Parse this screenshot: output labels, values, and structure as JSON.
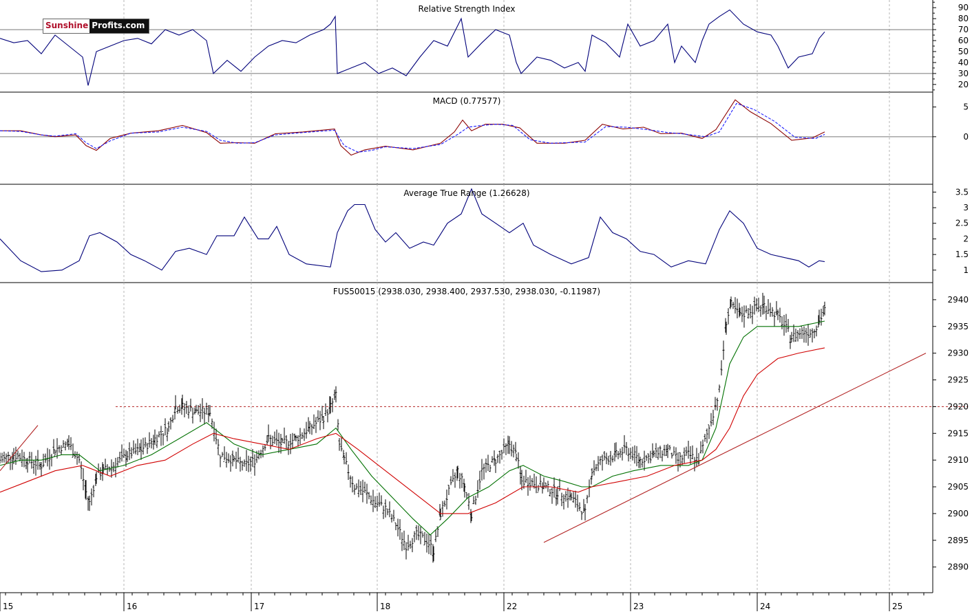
{
  "chart_data": [
    {
      "type": "line",
      "title": "Relative Strength Index",
      "yticks": [
        20,
        30,
        40,
        50,
        60,
        70,
        80,
        90
      ],
      "ylim": [
        13,
        97
      ],
      "reference_lines": [
        30,
        70
      ],
      "series": [
        {
          "color": "#00007a",
          "x": [
            0,
            20,
            40,
            60,
            80,
            100,
            120,
            128,
            140,
            160,
            180,
            200,
            220,
            240,
            260,
            280,
            300,
            310,
            330,
            350,
            370,
            390,
            410,
            430,
            450,
            470,
            480,
            487,
            490,
            510,
            530,
            550,
            570,
            590,
            610,
            630,
            650,
            670,
            680,
            700,
            720,
            740,
            750,
            757,
            780,
            800,
            820,
            840,
            850,
            860,
            880,
            900,
            912,
            930,
            950,
            970,
            980,
            990,
            1010,
            1020,
            1030,
            1045,
            1060,
            1080,
            1100,
            1120,
            1130,
            1145,
            1160,
            1180,
            1190,
            1198
          ],
          "values": [
            62,
            58,
            60,
            48,
            65,
            55,
            45,
            19,
            50,
            55,
            60,
            62,
            57,
            70,
            65,
            70,
            60,
            30,
            42,
            32,
            45,
            55,
            60,
            58,
            65,
            70,
            75,
            82,
            30,
            35,
            40,
            30,
            35,
            28,
            45,
            60,
            55,
            80,
            45,
            58,
            70,
            65,
            40,
            30,
            45,
            42,
            35,
            40,
            32,
            65,
            58,
            45,
            75,
            55,
            60,
            75,
            40,
            55,
            40,
            60,
            75,
            82,
            88,
            75,
            68,
            65,
            55,
            35,
            45,
            48,
            62,
            68
          ]
        }
      ]
    },
    {
      "type": "line",
      "title": "MACD (0.77577)",
      "yticks": [
        5,
        0
      ],
      "ylim": [
        -8,
        7.5
      ],
      "reference_lines": [
        0
      ],
      "series": [
        {
          "color": "#8b0000",
          "x": [
            0,
            30,
            60,
            80,
            110,
            125,
            140,
            160,
            190,
            230,
            265,
            300,
            320,
            345,
            370,
            400,
            440,
            486,
            495,
            510,
            530,
            560,
            600,
            640,
            660,
            672,
            685,
            705,
            730,
            755,
            780,
            820,
            850,
            875,
            905,
            935,
            960,
            990,
            1020,
            1040,
            1068,
            1090,
            1120,
            1150,
            1180,
            1198
          ],
          "values": [
            1,
            1,
            0.3,
            0,
            0.3,
            -1.5,
            -2.3,
            -0.3,
            0.6,
            1,
            1.9,
            0.7,
            -1.1,
            -1,
            -1.1,
            0.5,
            0.8,
            1.3,
            -1.5,
            -3.1,
            -2.2,
            -1.6,
            -2.2,
            -1.1,
            0.8,
            2.8,
            1,
            2.1,
            2.1,
            1.5,
            -1.1,
            -1.1,
            -0.6,
            2.1,
            1.3,
            1.6,
            0.5,
            0.6,
            -0.3,
            1.2,
            6.2,
            4.2,
            2.2,
            -0.6,
            -0.2,
            0.8
          ]
        },
        {
          "color": "#1a1aff",
          "x": [
            0,
            30,
            60,
            80,
            110,
            125,
            140,
            160,
            190,
            230,
            265,
            300,
            320,
            345,
            370,
            400,
            440,
            486,
            500,
            520,
            540,
            560,
            600,
            640,
            665,
            680,
            700,
            720,
            745,
            770,
            800,
            850,
            880,
            910,
            940,
            970,
            990,
            1025,
            1045,
            1070,
            1095,
            1125,
            1155,
            1185,
            1198
          ],
          "values": [
            1,
            0.9,
            0.3,
            0.1,
            0.5,
            -1,
            -2,
            -0.7,
            0.6,
            0.8,
            1.6,
            0.9,
            -0.6,
            -1.1,
            -1,
            0.3,
            0.7,
            1.1,
            -1.5,
            -2.6,
            -2.3,
            -1.7,
            -2,
            -1.3,
            0.4,
            1.6,
            1.9,
            2.1,
            1.9,
            -0.5,
            -1.1,
            -0.9,
            1.7,
            1.6,
            1.2,
            0.7,
            0.5,
            0,
            0.8,
            5.6,
            4.6,
            2.6,
            -0.1,
            -0.3,
            0.4
          ]
        }
      ]
    },
    {
      "type": "line",
      "title": "Average True Range (1.26628)",
      "yticks": [
        3.5,
        3.0,
        2.5,
        2.0,
        1.5,
        1.0
      ],
      "ylim": [
        0.6,
        3.75
      ],
      "series": [
        {
          "color": "#00007a",
          "x": [
            0,
            30,
            60,
            90,
            115,
            130,
            145,
            170,
            190,
            210,
            235,
            255,
            275,
            300,
            315,
            340,
            355,
            375,
            390,
            402,
            420,
            445,
            480,
            490,
            505,
            515,
            530,
            545,
            560,
            575,
            595,
            615,
            630,
            650,
            670,
            685,
            700,
            720,
            740,
            760,
            775,
            800,
            830,
            855,
            872,
            890,
            910,
            930,
            950,
            975,
            1000,
            1025,
            1045,
            1060,
            1080,
            1100,
            1120,
            1140,
            1160,
            1175,
            1190,
            1198
          ],
          "values": [
            2,
            1.3,
            0.95,
            1,
            1.3,
            2.1,
            2.2,
            1.9,
            1.5,
            1.3,
            1,
            1.6,
            1.7,
            1.5,
            2.1,
            2.1,
            2.7,
            2,
            2,
            2.4,
            1.5,
            1.2,
            1.1,
            2.2,
            2.9,
            3.1,
            3.1,
            2.3,
            1.9,
            2.2,
            1.7,
            1.9,
            1.8,
            2.5,
            2.8,
            3.6,
            2.8,
            2.5,
            2.2,
            2.5,
            1.8,
            1.5,
            1.2,
            1.4,
            2.7,
            2.2,
            2,
            1.6,
            1.5,
            1.1,
            1.3,
            1.2,
            2.3,
            2.9,
            2.5,
            1.7,
            1.5,
            1.4,
            1.3,
            1.1,
            1.3,
            1.27
          ]
        }
      ]
    },
    {
      "type": "candlestick",
      "title": "FUS50015 (2938.030, 2938.400, 2937.530, 2938.030, -0.11987)",
      "symbol": "FUS50015",
      "last": {
        "open": 2938.03,
        "high": 2938.4,
        "low": 2937.53,
        "close": 2938.03,
        "change": -0.11987
      },
      "yticks": [
        2940,
        2935,
        2930,
        2925,
        2920,
        2915,
        2910,
        2905,
        2900,
        2895,
        2890
      ],
      "ylim": [
        2885.2,
        2943.2
      ],
      "horizontal_level": 2920,
      "series": [
        {
          "name": "price",
          "color": "#000000",
          "x": [
            0,
            20,
            40,
            60,
            80,
            100,
            115,
            125,
            130,
            140,
            150,
            165,
            185,
            205,
            225,
            245,
            255,
            265,
            285,
            305,
            320,
            340,
            355,
            370,
            390,
            410,
            430,
            450,
            470,
            480,
            488,
            493,
            500,
            515,
            530,
            545,
            560,
            575,
            590,
            605,
            620,
            630,
            640,
            655,
            665,
            675,
            685,
            700,
            720,
            740,
            750,
            758,
            770,
            790,
            810,
            830,
            850,
            860,
            875,
            895,
            910,
            930,
            950,
            970,
            985,
            1000,
            1015,
            1030,
            1045,
            1055,
            1062,
            1075,
            1090,
            1110,
            1130,
            1150,
            1165,
            1180,
            1190,
            1198
          ],
          "values": [
            2910,
            2911,
            2910,
            2909,
            2912,
            2913,
            2910,
            2904,
            2902,
            2907,
            2908,
            2909,
            2911,
            2912,
            2914,
            2916,
            2920,
            2920,
            2919,
            2919,
            2911,
            2910,
            2909,
            2910,
            2914,
            2913,
            2914,
            2916,
            2918,
            2920,
            2922,
            2913,
            2910,
            2905,
            2904,
            2902,
            2901,
            2898,
            2894,
            2896,
            2895,
            2893,
            2900,
            2905,
            2908,
            2905,
            2900,
            2908,
            2910,
            2913,
            2911,
            2906,
            2906,
            2905,
            2904,
            2903,
            2900,
            2908,
            2910,
            2911,
            2912,
            2910,
            2911,
            2912,
            2910,
            2911,
            2910,
            2916,
            2923,
            2936,
            2939,
            2937,
            2938,
            2939,
            2937,
            2933,
            2934,
            2934,
            2936,
            2938
          ]
        },
        {
          "name": "",
          "color": "#007000",
          "x": [
            0,
            30,
            60,
            90,
            115,
            145,
            180,
            220,
            260,
            300,
            340,
            380,
            420,
            460,
            488,
            510,
            540,
            570,
            600,
            625,
            650,
            680,
            710,
            740,
            760,
            790,
            820,
            845,
            860,
            890,
            920,
            960,
            1000,
            1020,
            1040,
            1060,
            1080,
            1100,
            1130,
            1160,
            1198
          ],
          "values": [
            2909,
            2910,
            2910,
            2911,
            2911,
            2908,
            2909,
            2911,
            2914,
            2917,
            2913,
            2911,
            2912,
            2913,
            2916,
            2912,
            2907,
            2903,
            2899,
            2896,
            2899,
            2903,
            2905,
            2908,
            2909,
            2907,
            2906,
            2905,
            2905,
            2907,
            2908,
            2909,
            2909,
            2910,
            2916,
            2928,
            2933,
            2935,
            2935,
            2935,
            2936
          ]
        },
        {
          "name": "",
          "color": "#d00000",
          "x": [
            0,
            40,
            80,
            120,
            160,
            200,
            240,
            280,
            310,
            340,
            380,
            420,
            460,
            488,
            520,
            560,
            600,
            640,
            680,
            720,
            760,
            800,
            840,
            860,
            900,
            940,
            980,
            1020,
            1040,
            1060,
            1080,
            1100,
            1130,
            1160,
            1198
          ],
          "values": [
            2904,
            2906,
            2908,
            2909,
            2907,
            2909,
            2910,
            2913,
            2915,
            2914,
            2913,
            2912,
            2914,
            2915,
            2912,
            2908,
            2904,
            2900,
            2900,
            2902,
            2905,
            2905,
            2904,
            2905,
            2906,
            2907,
            2909,
            2910,
            2912,
            2916,
            2922,
            2926,
            2929,
            2930,
            2931
          ]
        },
        {
          "name": "",
          "color": "#b22222",
          "x": [
            0,
            55
          ],
          "values": [
            2908,
            2916.5
          ]
        },
        {
          "name": "",
          "color": "#b22222",
          "x": [
            790,
            1345
          ],
          "values": [
            2894.6,
            2930
          ]
        }
      ]
    }
  ],
  "x_axis": {
    "ticks": [
      {
        "x": 0,
        "label": "15"
      },
      {
        "x": 180,
        "label": "16"
      },
      {
        "x": 365,
        "label": "17"
      },
      {
        "x": 548,
        "label": "18"
      },
      {
        "x": 732,
        "label": "22"
      },
      {
        "x": 916,
        "label": "23"
      },
      {
        "x": 1100,
        "label": "24"
      },
      {
        "x": 1292,
        "label": "25"
      }
    ]
  },
  "logo": {
    "part1": "Sunshine",
    "part2": "Profits.com"
  },
  "colors": {
    "rsi_line": "#00007a",
    "macd_line": "#8b0000",
    "macd_signal": "#1a1aff",
    "atr_line": "#00007a",
    "price_bars": "#000000",
    "ma_green": "#007000",
    "ma_red": "#d00000",
    "trend_line": "#b22222",
    "level_line": "#b22222"
  }
}
